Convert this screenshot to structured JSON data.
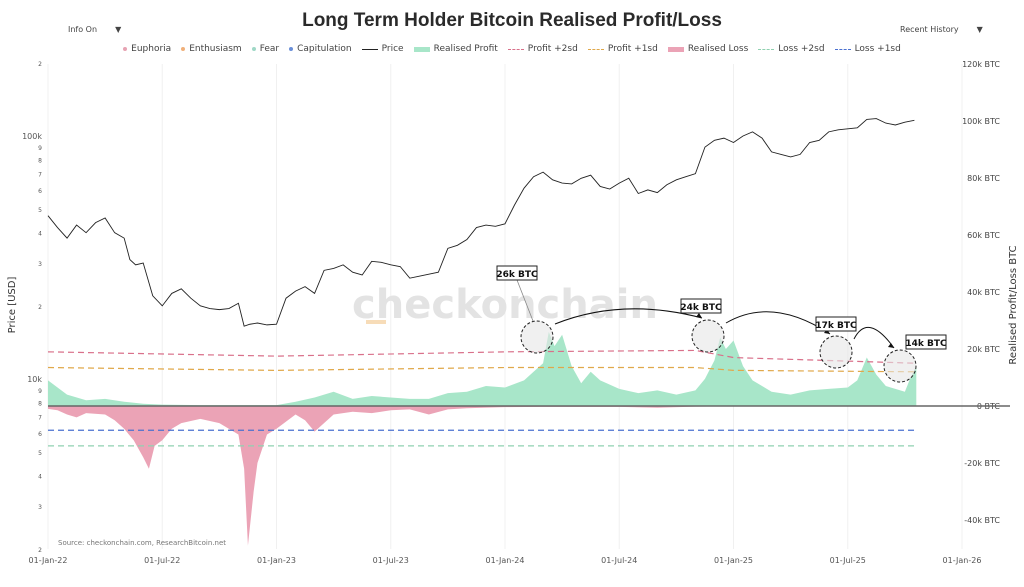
{
  "header": {
    "title": "Long Term Holder Bitcoin Realised Profit/Loss",
    "info_dropdown": "Info On",
    "history_dropdown": "Recent History"
  },
  "legend": [
    {
      "label": "Euphoria",
      "type": "dot",
      "color": "#e7a3b3"
    },
    {
      "label": "Enthusiasm",
      "type": "dot",
      "color": "#f0b07a"
    },
    {
      "label": "Fear",
      "type": "dot",
      "color": "#9fd8c6"
    },
    {
      "label": "Capitulation",
      "type": "dot",
      "color": "#6a8fd8"
    },
    {
      "label": "Price",
      "type": "line",
      "color": "#222222"
    },
    {
      "label": "Realised Profit",
      "type": "area",
      "color": "#a8e6c9"
    },
    {
      "label": "Profit +2sd",
      "type": "dash",
      "color": "#d9708a"
    },
    {
      "label": "Profit +1sd",
      "type": "dash",
      "color": "#e0a84a"
    },
    {
      "label": "Realised Loss",
      "type": "area",
      "color": "#eba3b6"
    },
    {
      "label": "Loss +2sd",
      "type": "dash",
      "color": "#8fd1b0"
    },
    {
      "label": "Loss +1sd",
      "type": "dash",
      "color": "#4a70d0"
    }
  ],
  "source": "Source: checkonchain.com, ResearchBitcoin.net",
  "watermark": "checkonchain",
  "chart_data": {
    "type": "line",
    "title": "Long Term Holder Bitcoin Realised Profit/Loss",
    "ylabel_left": "Price [USD]",
    "ylabel_right": "Realised Profit/Loss BTC",
    "x_range": [
      "2022-01-01",
      "2026-01-01"
    ],
    "y_left_scale": "log",
    "y_left_range": [
      2000,
      200000
    ],
    "y_right_range": [
      -45000,
      120000
    ],
    "x_ticks": [
      "01-Jan-22",
      "01-Jul-22",
      "01-Jan-23",
      "01-Jul-23",
      "01-Jan-24",
      "01-Jul-24",
      "01-Jan-25",
      "01-Jul-25",
      "01-Jan-26"
    ],
    "x_tick_months": [
      0,
      6,
      12,
      18,
      24,
      30,
      36,
      42,
      48
    ],
    "y_left_ticks": [
      {
        "v": 200000,
        "l": "2"
      },
      {
        "v": 100000,
        "l": "100k"
      },
      {
        "v": 90000,
        "l": "9"
      },
      {
        "v": 80000,
        "l": "8"
      },
      {
        "v": 70000,
        "l": "7"
      },
      {
        "v": 60000,
        "l": "6"
      },
      {
        "v": 50000,
        "l": "5"
      },
      {
        "v": 40000,
        "l": "4"
      },
      {
        "v": 30000,
        "l": "3"
      },
      {
        "v": 20000,
        "l": "2"
      },
      {
        "v": 10000,
        "l": "10k"
      },
      {
        "v": 9000,
        "l": "9"
      },
      {
        "v": 8000,
        "l": "8"
      },
      {
        "v": 7000,
        "l": "7"
      },
      {
        "v": 6000,
        "l": "6"
      },
      {
        "v": 5000,
        "l": "5"
      },
      {
        "v": 4000,
        "l": "4"
      },
      {
        "v": 3000,
        "l": "3"
      },
      {
        "v": 2000,
        "l": "2"
      }
    ],
    "y_right_ticks": [
      {
        "v": 120000,
        "l": "120k BTC"
      },
      {
        "v": 100000,
        "l": "100k BTC"
      },
      {
        "v": 80000,
        "l": "80k BTC"
      },
      {
        "v": 60000,
        "l": "60k BTC"
      },
      {
        "v": 40000,
        "l": "40k BTC"
      },
      {
        "v": 20000,
        "l": "20k BTC"
      },
      {
        "v": 0,
        "l": "0 BTC"
      },
      {
        "v": -20000,
        "l": "-20k BTC"
      },
      {
        "v": -40000,
        "l": "-40k BTC"
      }
    ],
    "price": {
      "months": [
        0,
        0.5,
        1,
        1.5,
        2,
        2.5,
        3,
        3.5,
        4,
        4.3,
        4.6,
        5,
        5.5,
        6,
        6.5,
        7,
        7.5,
        8,
        8.5,
        9,
        9.5,
        10,
        10.3,
        10.6,
        11,
        11.5,
        12,
        12.5,
        13,
        13.5,
        14,
        14.5,
        15,
        15.5,
        16,
        16.5,
        17,
        17.5,
        18,
        18.5,
        19,
        19.5,
        20,
        20.5,
        21,
        21.5,
        22,
        22.5,
        23,
        23.5,
        24,
        24.5,
        25,
        25.5,
        26,
        26.5,
        27,
        27.5,
        28,
        28.5,
        29,
        29.5,
        30,
        30.5,
        31,
        31.5,
        32,
        32.5,
        33,
        33.5,
        34,
        34.5,
        35,
        35.5,
        36,
        36.5,
        37,
        37.5,
        38,
        38.5,
        39,
        39.5,
        40,
        40.5,
        41,
        41.5,
        42,
        42.5,
        43,
        43.5,
        44,
        44.5,
        45,
        45.5
      ],
      "usd": [
        47000,
        42000,
        38000,
        43000,
        40000,
        44000,
        46000,
        40000,
        38000,
        31000,
        29500,
        30000,
        22000,
        20000,
        22500,
        23500,
        21500,
        20000,
        19500,
        19300,
        19500,
        20500,
        16500,
        16800,
        17000,
        16700,
        16800,
        21500,
        23000,
        24000,
        22500,
        28000,
        28500,
        29500,
        27500,
        26800,
        30500,
        30200,
        29500,
        29000,
        26000,
        26500,
        27000,
        27500,
        34500,
        35500,
        37500,
        42000,
        43000,
        42500,
        43500,
        52000,
        61000,
        68000,
        71000,
        66000,
        64000,
        63500,
        67000,
        69000,
        62000,
        60500,
        64000,
        67000,
        58000,
        60000,
        58500,
        63000,
        66000,
        68000,
        70000,
        90000,
        96000,
        98000,
        94000,
        100000,
        104000,
        98000,
        86000,
        84000,
        82000,
        84000,
        94000,
        96000,
        104000,
        106000,
        107000,
        108000,
        117000,
        118000,
        113000,
        111000,
        114000,
        116000,
        110000,
        107000
      ]
    },
    "realised_profit": {
      "months": [
        0,
        1,
        2,
        3,
        4,
        5,
        6,
        8,
        10,
        12,
        13,
        14,
        15,
        16,
        17,
        18,
        19,
        20,
        21,
        22,
        22.5,
        23,
        24,
        25,
        25.5,
        26,
        26.3,
        26.6,
        27,
        27.5,
        28,
        28.5,
        29,
        30,
        31,
        32,
        33,
        34,
        34.5,
        35,
        35.3,
        35.6,
        36,
        36.5,
        37,
        37.5,
        38,
        39,
        40,
        41,
        42,
        42.5,
        43,
        43.5,
        44,
        44.5,
        45,
        45.3,
        45.6
      ],
      "btc": [
        9000,
        4000,
        2000,
        2500,
        1500,
        800,
        500,
        300,
        300,
        300,
        1500,
        3000,
        5000,
        2500,
        3500,
        3000,
        2500,
        2500,
        4500,
        5000,
        6000,
        7000,
        6500,
        9000,
        12000,
        15000,
        26000,
        21000,
        25000,
        14000,
        8000,
        12000,
        9000,
        6000,
        4500,
        5500,
        4000,
        5500,
        9500,
        16000,
        24000,
        20000,
        23000,
        14000,
        9000,
        7000,
        5000,
        4000,
        5500,
        6000,
        6500,
        9000,
        17000,
        11000,
        7000,
        6000,
        5000,
        10000,
        14000
      ]
    },
    "realised_loss": {
      "months": [
        0,
        0.5,
        1,
        1.5,
        2,
        3,
        3.5,
        4,
        4.5,
        5,
        5.3,
        5.6,
        6,
        6.5,
        7,
        8,
        9,
        10,
        10.3,
        10.5,
        10.8,
        11,
        11.5,
        12,
        13,
        13.5,
        14,
        15,
        16,
        17,
        18,
        19,
        20,
        21,
        22,
        24,
        26,
        28,
        30,
        32,
        34,
        36,
        38,
        40,
        42,
        44,
        45.6
      ],
      "btc": [
        -1000,
        -1500,
        -3000,
        -4000,
        -2500,
        -3000,
        -5000,
        -8000,
        -12000,
        -18000,
        -22000,
        -14000,
        -12000,
        -8000,
        -6000,
        -4500,
        -6000,
        -10000,
        -22000,
        -49000,
        -30000,
        -20000,
        -10000,
        -8000,
        -3000,
        -5000,
        -9000,
        -3000,
        -2000,
        -2500,
        -1500,
        -1200,
        -3000,
        -1200,
        -800,
        -400,
        -300,
        -300,
        -300,
        -600,
        -200,
        -100,
        -100,
        -100,
        -100,
        -100,
        -100
      ]
    },
    "bands": [
      {
        "name": "Profit +2sd",
        "months": [
          0,
          12,
          24,
          34,
          36,
          45.6
        ],
        "btc": [
          19000,
          17500,
          19000,
          19500,
          17000,
          15000
        ]
      },
      {
        "name": "Profit +1sd",
        "months": [
          0,
          12,
          24,
          34,
          36,
          45.6
        ],
        "btc": [
          13500,
          12500,
          13500,
          13500,
          12500,
          12000
        ]
      },
      {
        "name": "Loss +1sd",
        "months": [
          0,
          45.6
        ],
        "btc": [
          -8500,
          -8500
        ]
      },
      {
        "name": "Loss +2sd",
        "months": [
          0,
          45.6
        ],
        "btc": [
          -14000,
          -14000
        ]
      }
    ],
    "annotations": [
      {
        "label": "26k BTC",
        "month": 26.5,
        "btc": 24000
      },
      {
        "label": "24k BTC",
        "month": 35.5,
        "btc": 24000
      },
      {
        "label": "17k BTC",
        "month": 42.2,
        "btc": 19000
      },
      {
        "label": "14k BTC",
        "month": 45.6,
        "btc": 14000
      }
    ]
  }
}
